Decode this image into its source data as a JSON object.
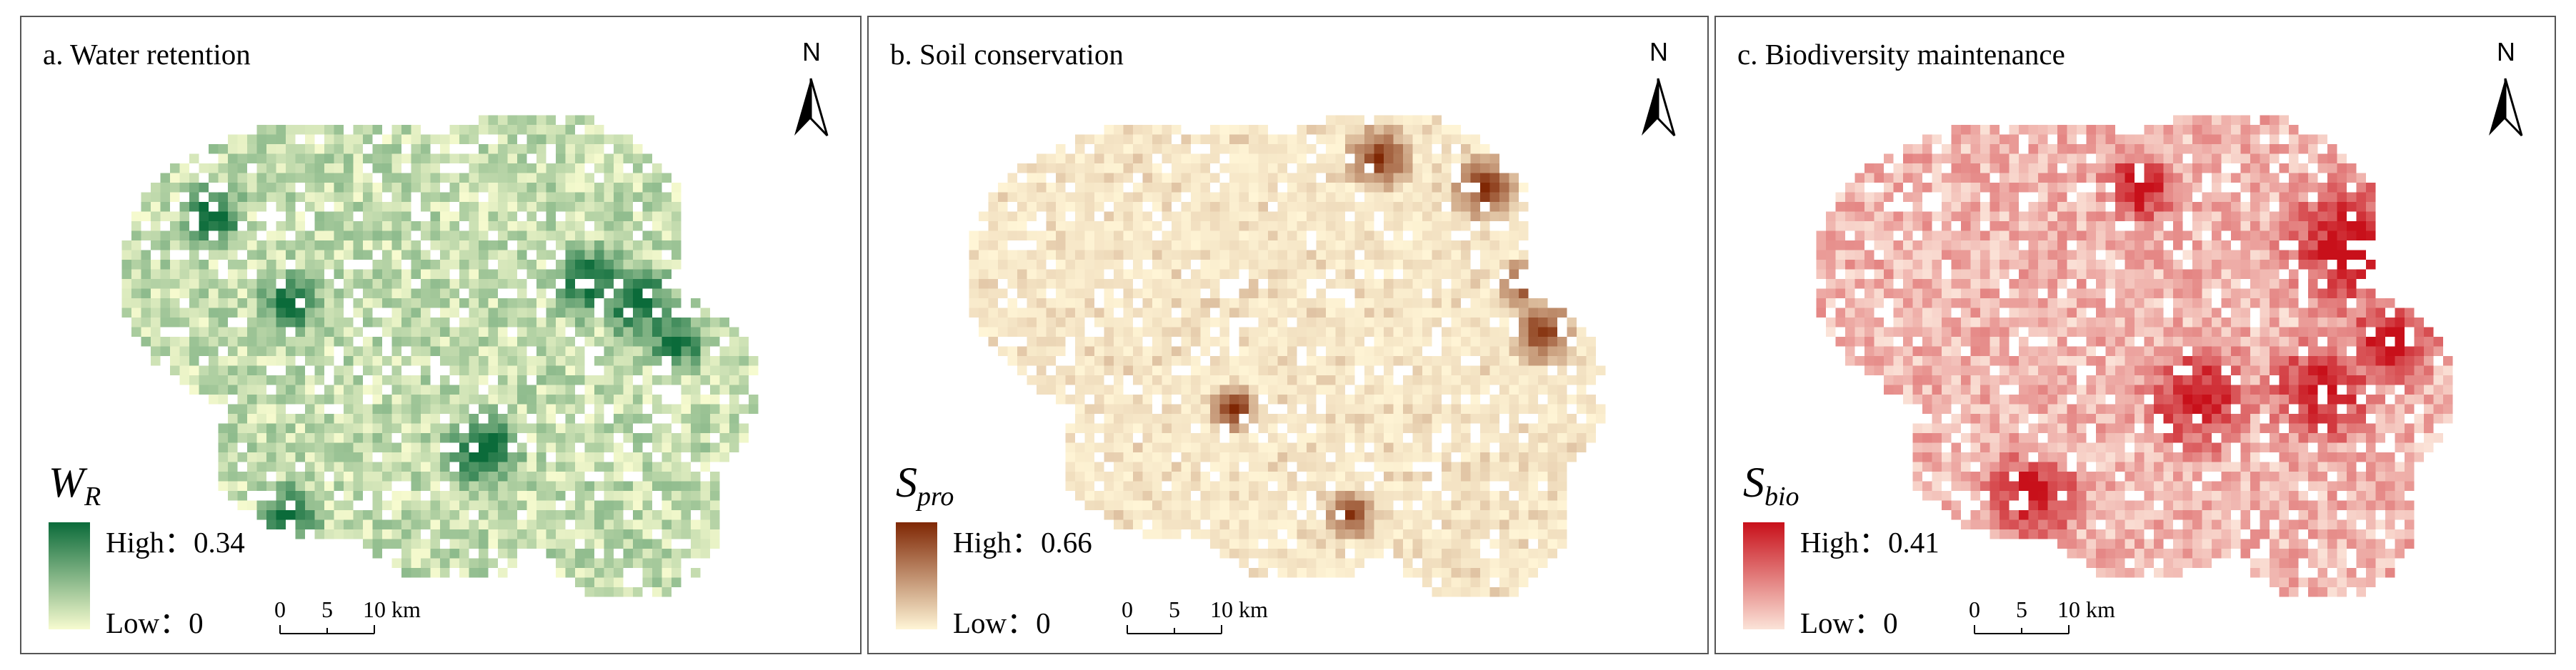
{
  "panels": [
    {
      "title": "a. Water retention",
      "variable_main": "W",
      "variable_sub": "R",
      "high_label": "High：0.34",
      "low_label": "Low：0",
      "ramp_low": "#f7fbcf",
      "ramp_high": "#0b6b3a",
      "scale_ticks": [
        "0",
        "5",
        "10"
      ],
      "scale_unit": "km",
      "north": "N"
    },
    {
      "title": "b. Soil conservation",
      "variable_main": "S",
      "variable_sub": "pro",
      "high_label": "High：0.66",
      "low_label": "Low：0",
      "ramp_low": "#fff5d6",
      "ramp_high": "#7f2704",
      "scale_ticks": [
        "0",
        "5",
        "10"
      ],
      "scale_unit": "km",
      "north": "N"
    },
    {
      "title": "c. Biodiversity maintenance",
      "variable_main": "S",
      "variable_sub": "bio",
      "high_label": "High：0.41",
      "low_label": "Low：0",
      "ramp_low": "#fbe3d8",
      "ramp_high": "#c8101a",
      "scale_ticks": [
        "0",
        "5",
        "10"
      ],
      "scale_unit": "km",
      "north": "N"
    }
  ]
}
